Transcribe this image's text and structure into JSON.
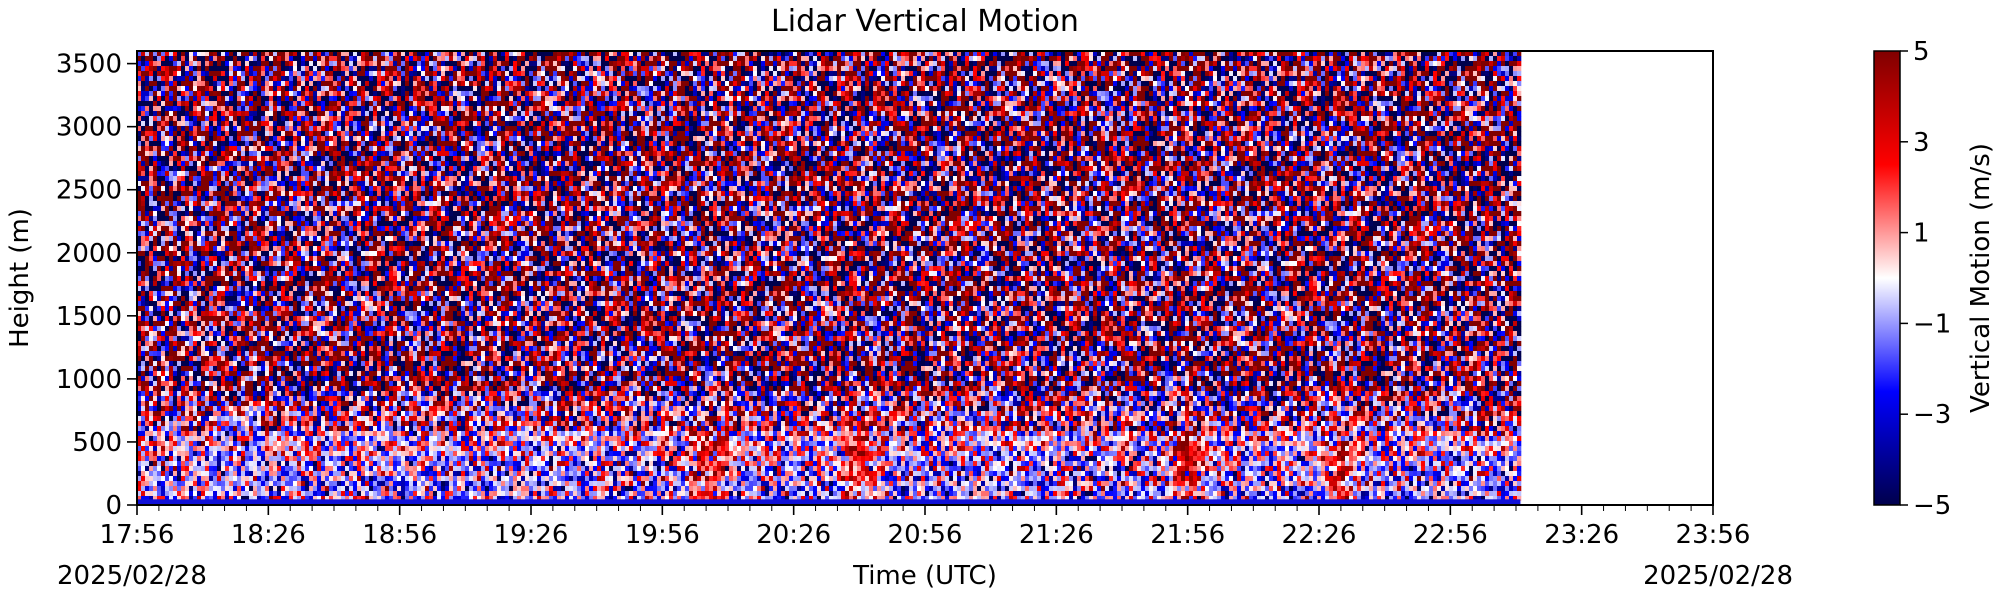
{
  "chart_data": {
    "type": "heatmap",
    "title": "Lidar Vertical Motion",
    "xlabel": "Time (UTC)",
    "ylabel": "Height (m)",
    "x_start_date_label": "2025/02/28",
    "x_end_date_label": "2025/02/28",
    "x_tick_labels": [
      "17:56",
      "18:26",
      "18:56",
      "19:26",
      "19:56",
      "20:26",
      "20:56",
      "21:26",
      "21:56",
      "22:26",
      "22:56",
      "23:26",
      "23:56"
    ],
    "x_range": [
      "17:56",
      "23:56"
    ],
    "data_end_time": "23:12",
    "y_ticks": [
      0,
      500,
      1000,
      1500,
      2000,
      2500,
      3000,
      3500
    ],
    "y_range": [
      0,
      3600
    ],
    "colorbar": {
      "label": "Vertical Motion (m/s)",
      "ticks": [
        5,
        3,
        1,
        -1,
        -3,
        -5
      ],
      "range": [
        -5,
        5
      ],
      "colormap": "seismic",
      "colors": [
        "#00004c",
        "#0000ff",
        "#ffffff",
        "#ff0000",
        "#800000"
      ]
    },
    "features": [
      {
        "time": "20:06",
        "height_range": [
          100,
          700
        ],
        "sign": "positive"
      },
      {
        "time": "20:41",
        "height_range": [
          100,
          700
        ],
        "sign": "positive"
      },
      {
        "time": "21:56",
        "height_range": [
          0,
          600
        ],
        "sign": "positive"
      },
      {
        "time": "22:31",
        "height_range": [
          100,
          500
        ],
        "sign": "positive"
      }
    ],
    "grid": false
  }
}
